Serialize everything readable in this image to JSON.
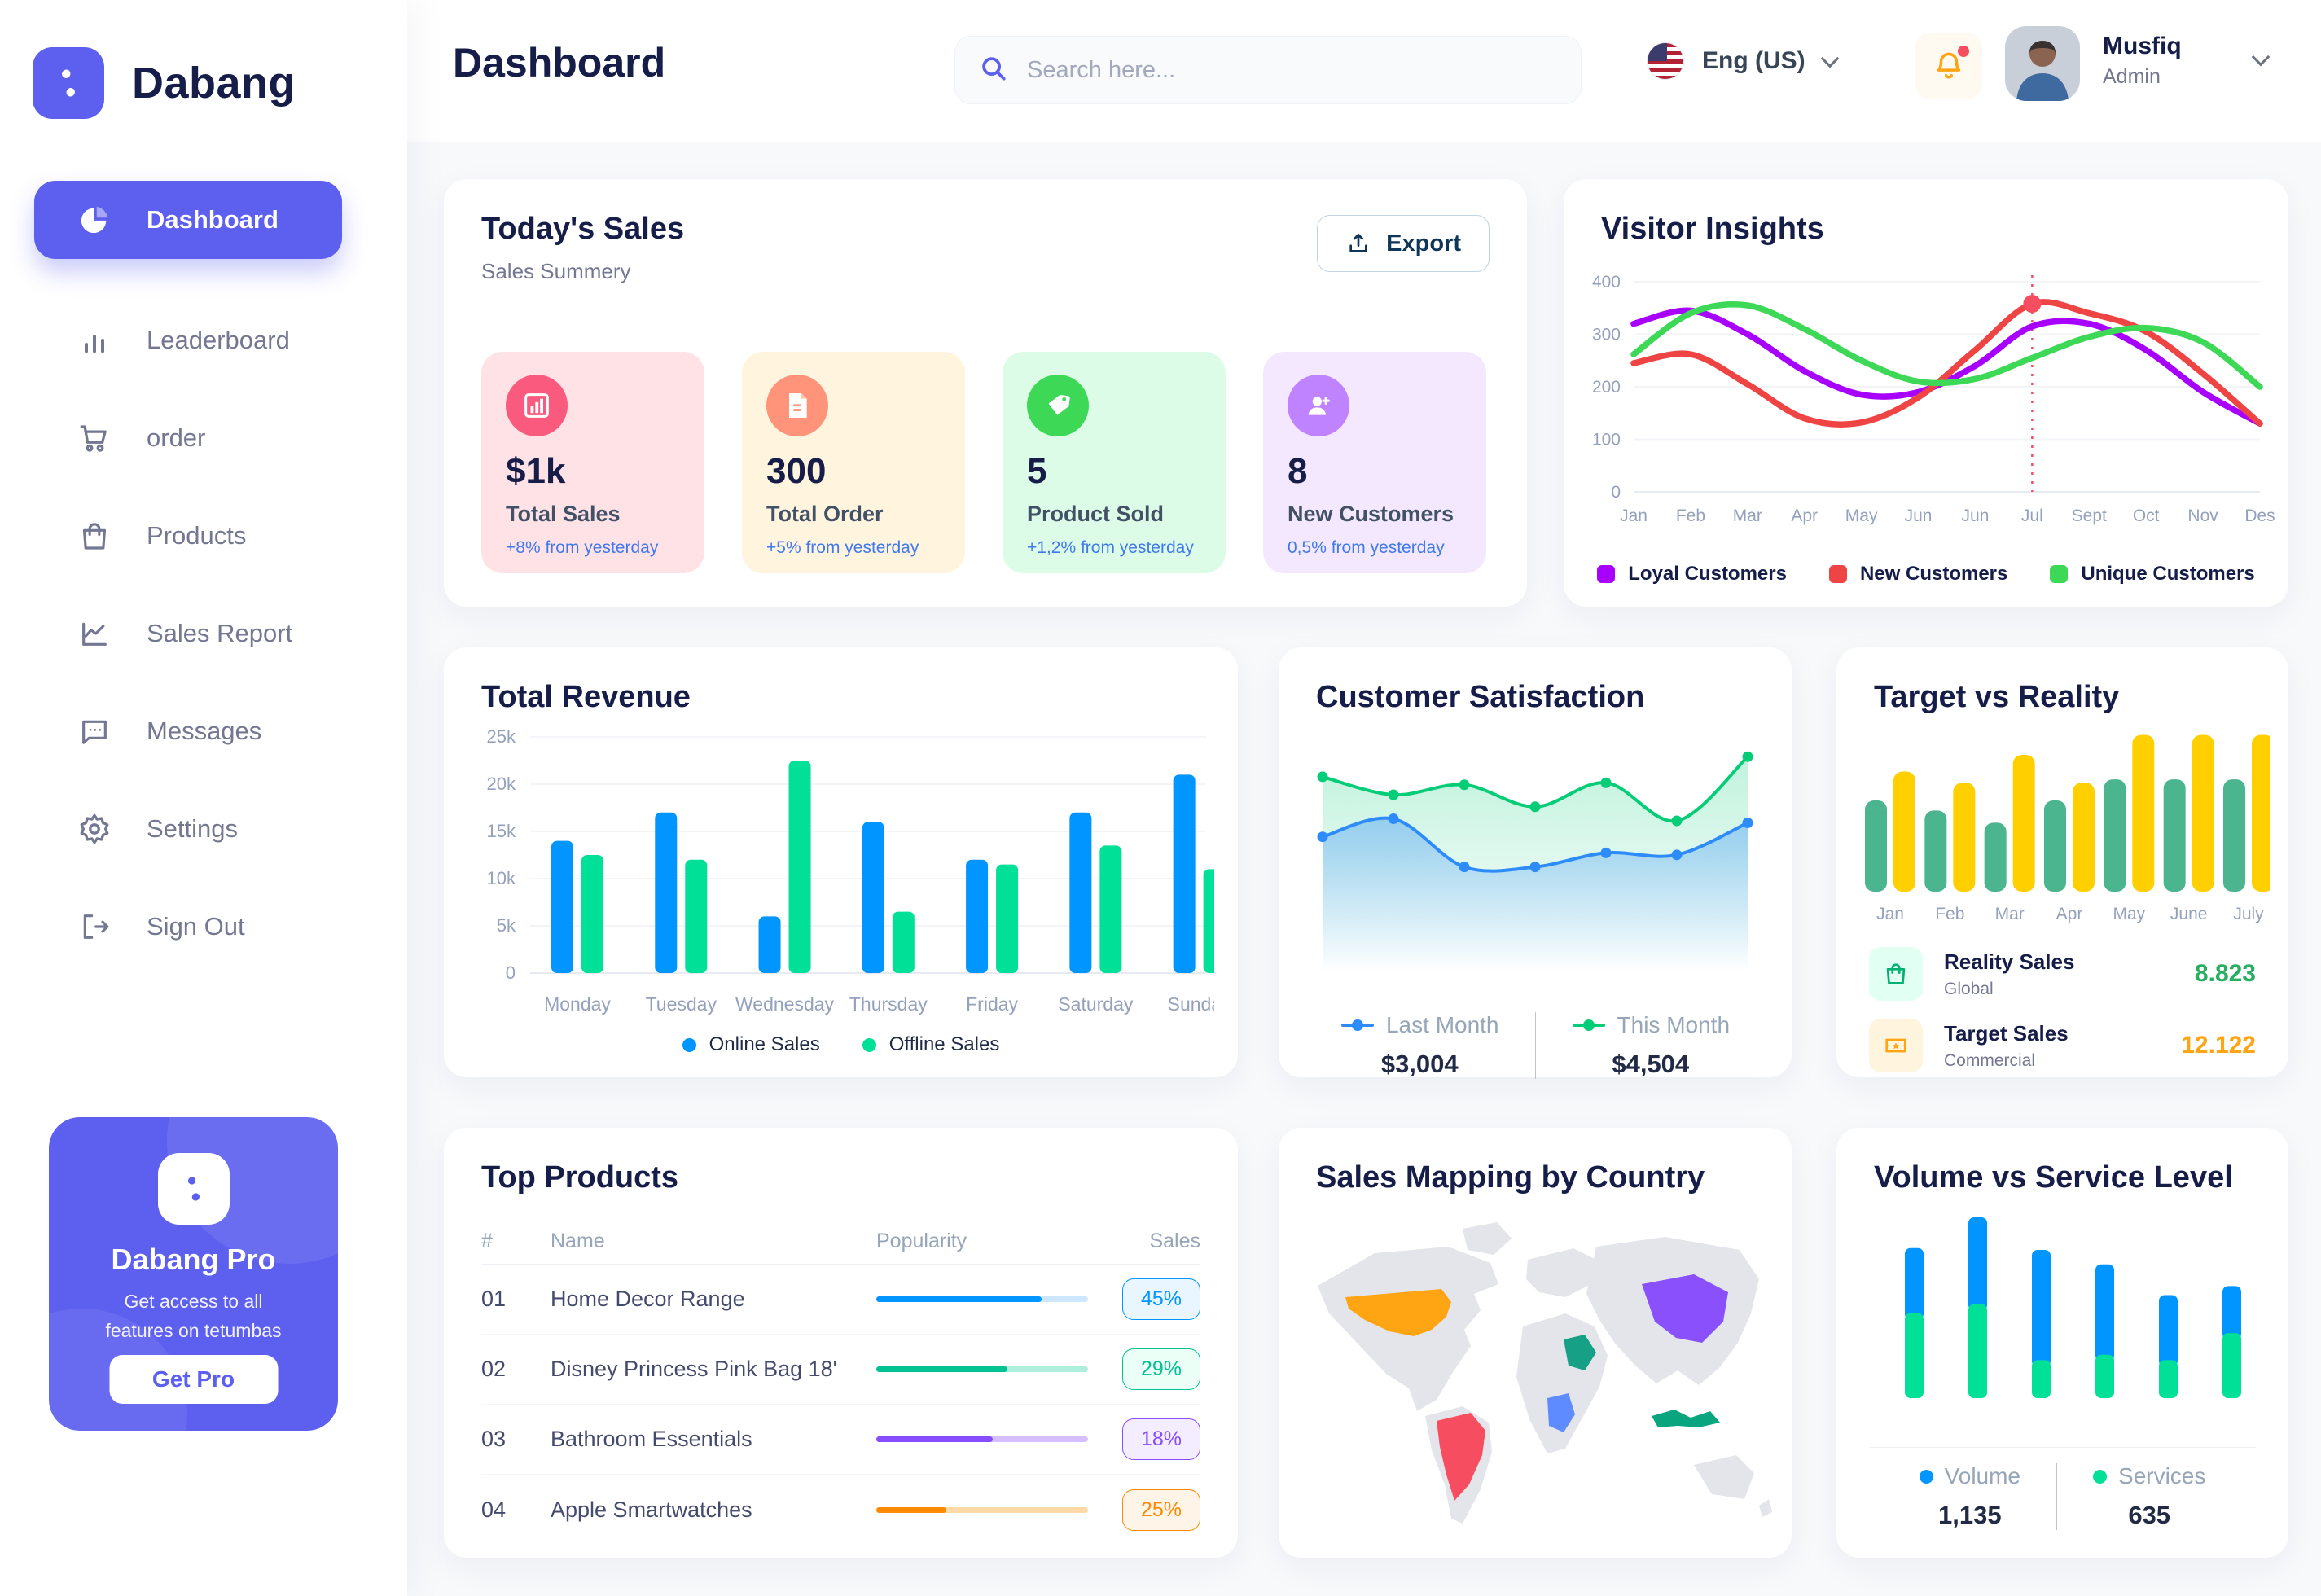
{
  "brand": {
    "name": "Dabang"
  },
  "sidebar": {
    "items": [
      {
        "label": "Dashboard"
      },
      {
        "label": "Leaderboard"
      },
      {
        "label": "order"
      },
      {
        "label": "Products"
      },
      {
        "label": "Sales Report"
      },
      {
        "label": "Messages"
      },
      {
        "label": "Settings"
      },
      {
        "label": "Sign Out"
      }
    ],
    "pro": {
      "title": "Dabang Pro",
      "line1": "Get access to all",
      "line2": "features on tetumbas",
      "cta": "Get Pro"
    }
  },
  "header": {
    "title": "Dashboard",
    "search_placeholder": "Search here...",
    "language": "Eng (US)",
    "user_name": "Musfiq",
    "user_role": "Admin"
  },
  "today_sales": {
    "title": "Today's Sales",
    "subtitle": "Sales Summery",
    "export_label": "Export",
    "stats": [
      {
        "value": "$1k",
        "label": "Total Sales",
        "delta": "+8% from yesterday",
        "bg": "#FFE2E5",
        "icon_bg": "#FA5A7D",
        "icon": "bar-chart-icon"
      },
      {
        "value": "300",
        "label": "Total Order",
        "delta": "+5% from yesterday",
        "bg": "#FFF4DE",
        "icon_bg": "#FF947A",
        "icon": "order-document-icon"
      },
      {
        "value": "5",
        "label": "Product Sold",
        "delta": "+1,2% from yesterday",
        "bg": "#DCFCE7",
        "icon_bg": "#3CD856",
        "icon": "tag-icon"
      },
      {
        "value": "8",
        "label": "New Customers",
        "delta": "0,5% from yesterday",
        "bg": "#F3E8FF",
        "icon_bg": "#BF83FF",
        "icon": "user-plus-icon"
      }
    ]
  },
  "visitor_insights": {
    "title": "Visitor Insights",
    "type": "line",
    "x_labels": [
      "Jan",
      "Feb",
      "Mar",
      "Apr",
      "May",
      "Jun",
      "Jun",
      "Jul",
      "Sept",
      "Oct",
      "Nov",
      "Des"
    ],
    "y_ticks": [
      0,
      100,
      200,
      300,
      400
    ],
    "ymax": 400,
    "marker_index": 7,
    "series": [
      {
        "name": "Loyal Customers",
        "color": "#A700FF",
        "values": [
          320,
          345,
          300,
          230,
          185,
          190,
          240,
          315,
          320,
          270,
          190,
          130
        ]
      },
      {
        "name": "New Customers",
        "color": "#EF4444",
        "values": [
          245,
          262,
          205,
          140,
          132,
          180,
          270,
          358,
          340,
          305,
          225,
          130
        ]
      },
      {
        "name": "Unique Customers",
        "color": "#3CD856",
        "values": [
          262,
          340,
          355,
          310,
          250,
          210,
          215,
          255,
          295,
          312,
          285,
          200
        ]
      }
    ]
  },
  "total_revenue": {
    "title": "Total Revenue",
    "type": "bar",
    "categories": [
      "Monday",
      "Tuesday",
      "Wednesday",
      "Thursday",
      "Friday",
      "Saturday",
      "Sunday"
    ],
    "y_tick_labels": [
      "0",
      "5k",
      "10k",
      "15k",
      "20k",
      "25k"
    ],
    "y_ticks": [
      0,
      5,
      10,
      15,
      20,
      25
    ],
    "ymax": 25,
    "series": [
      {
        "name": "Online Sales",
        "color": "#0095FF",
        "values": [
          14,
          17,
          6,
          16,
          12,
          17,
          21
        ]
      },
      {
        "name": "Offline Sales",
        "color": "#00E096",
        "values": [
          12.5,
          12,
          22.5,
          6.5,
          11.5,
          13.5,
          11
        ]
      }
    ]
  },
  "customer_satisfaction": {
    "title": "Customer Satisfaction",
    "type": "area",
    "series": [
      {
        "name": "Last Month",
        "total": "$3,004",
        "color": "#2E8BFA",
        "values": [
          55,
          64,
          40,
          40,
          47,
          46,
          62
        ]
      },
      {
        "name": "This Month",
        "total": "$4,504",
        "color": "#05CD77",
        "values": [
          85,
          76,
          81,
          70,
          82,
          63,
          95
        ]
      }
    ]
  },
  "target_vs_reality": {
    "title": "Target vs Reality",
    "type": "bar",
    "categories": [
      "Jan",
      "Feb",
      "Mar",
      "Apr",
      "May",
      "June",
      "July"
    ],
    "ymax": 14.5,
    "series": [
      {
        "name": "Reality Sales",
        "color": "#4AB58E",
        "values": [
          8.2,
          7.3,
          6.2,
          8.2,
          10.1,
          10.1,
          10.1
        ]
      },
      {
        "name": "Target Sales",
        "color": "#FFCF00",
        "values": [
          10.8,
          9.8,
          12.3,
          9.8,
          14.1,
          14.1,
          14.1
        ]
      }
    ],
    "legend": [
      {
        "name": "Reality Sales",
        "sub": "Global",
        "value": "8.823",
        "value_color": "#27AE60",
        "icon_bg": "#E2FFF3",
        "icon": "shopping-bag-icon"
      },
      {
        "name": "Target Sales",
        "sub": "Commercial",
        "value": "12.122",
        "value_color": "#FFA412",
        "icon_bg": "#FFF4DE",
        "icon": "ticket-icon"
      }
    ]
  },
  "top_products": {
    "title": "Top Products",
    "columns": [
      "#",
      "Name",
      "Popularity",
      "Sales"
    ],
    "rows": [
      {
        "num": "01",
        "name": "Home Decor Range",
        "popularity": 78,
        "sales": "45%",
        "color": "#0095FF",
        "track": "#CDE7FF",
        "badge_bg": "#EAF6FF"
      },
      {
        "num": "02",
        "name": "Disney Princess Pink Bag 18'",
        "popularity": 62,
        "sales": "29%",
        "color": "#00C292",
        "track": "#AFEEDB",
        "badge_bg": "#EBFFF6"
      },
      {
        "num": "03",
        "name": "Bathroom Essentials",
        "popularity": 55,
        "sales": "18%",
        "color": "#884DFF",
        "track": "#D5BFFF",
        "badge_bg": "#F4EDFF"
      },
      {
        "num": "04",
        "name": "Apple Smartwatches",
        "popularity": 33,
        "sales": "25%",
        "color": "#FF8900",
        "track": "#FFD9A7",
        "badge_bg": "#FFF4E8"
      }
    ]
  },
  "sales_mapping": {
    "title": "Sales Mapping by Country",
    "country_colors": {
      "usa": "#FFA412",
      "brazil": "#F64E60",
      "saudi": "#16A085",
      "drc": "#5E8BFF",
      "china": "#8950FC",
      "indonesia": "#09A57F"
    }
  },
  "volume_service": {
    "title": "Volume vs Service Level",
    "type": "stacked-bar",
    "series": [
      {
        "name": "Volume",
        "total": "1,135",
        "color": "#0095FF",
        "values": [
          36,
          48,
          61,
          50,
          36,
          26
        ]
      },
      {
        "name": "Services",
        "total": "635",
        "color": "#00E096",
        "values": [
          47,
          52,
          21,
          24,
          21,
          36
        ]
      }
    ]
  }
}
